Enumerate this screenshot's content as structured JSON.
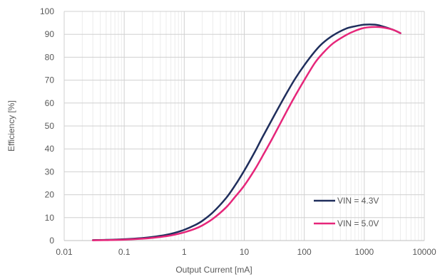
{
  "chart_data": {
    "type": "line",
    "title": "",
    "xlabel": "Output Current [mA]",
    "ylabel": "Efficiency [%]",
    "x_scale": "log",
    "xlim": [
      0.01,
      10000
    ],
    "ylim": [
      0,
      100
    ],
    "x_ticks": [
      "0.01",
      "0.1",
      "1",
      "10",
      "100",
      "1000",
      "10000"
    ],
    "y_ticks": [
      "0",
      "10",
      "20",
      "30",
      "40",
      "50",
      "60",
      "70",
      "80",
      "90",
      "100"
    ],
    "grid": true,
    "legend_position": "bottom-right",
    "series": [
      {
        "name": "VIN = 4.3V",
        "color": "#1f2e5c",
        "x": [
          0.03,
          0.05,
          0.1,
          0.2,
          0.3,
          0.5,
          0.7,
          1,
          1.5,
          2,
          3,
          5,
          7,
          10,
          15,
          20,
          30,
          50,
          70,
          100,
          150,
          200,
          300,
          500,
          700,
          1000,
          1500,
          2000,
          3000,
          4000
        ],
        "y": [
          0.2,
          0.3,
          0.6,
          1.1,
          1.6,
          2.5,
          3.4,
          4.7,
          6.7,
          8.6,
          12.3,
          18.6,
          24.0,
          30.5,
          38.7,
          45.0,
          53.5,
          64.0,
          70.5,
          76.5,
          82.5,
          86.0,
          89.5,
          92.5,
          93.5,
          94.2,
          94.2,
          93.5,
          92.0,
          90.5
        ]
      },
      {
        "name": "VIN = 5.0V",
        "color": "#e6267a",
        "x": [
          0.03,
          0.05,
          0.1,
          0.2,
          0.3,
          0.5,
          0.7,
          1,
          1.5,
          2,
          3,
          5,
          7,
          10,
          15,
          20,
          30,
          50,
          70,
          100,
          150,
          200,
          300,
          500,
          700,
          1000,
          1500,
          2000,
          3000,
          4000
        ],
        "y": [
          0.1,
          0.2,
          0.4,
          0.8,
          1.2,
          1.9,
          2.6,
          3.6,
          5.1,
          6.6,
          9.5,
          14.5,
          19.0,
          24.0,
          31.0,
          36.7,
          45.0,
          56.0,
          63.0,
          70.0,
          77.5,
          81.5,
          86.0,
          89.7,
          91.5,
          92.8,
          93.2,
          93.0,
          92.0,
          90.5
        ]
      }
    ]
  }
}
